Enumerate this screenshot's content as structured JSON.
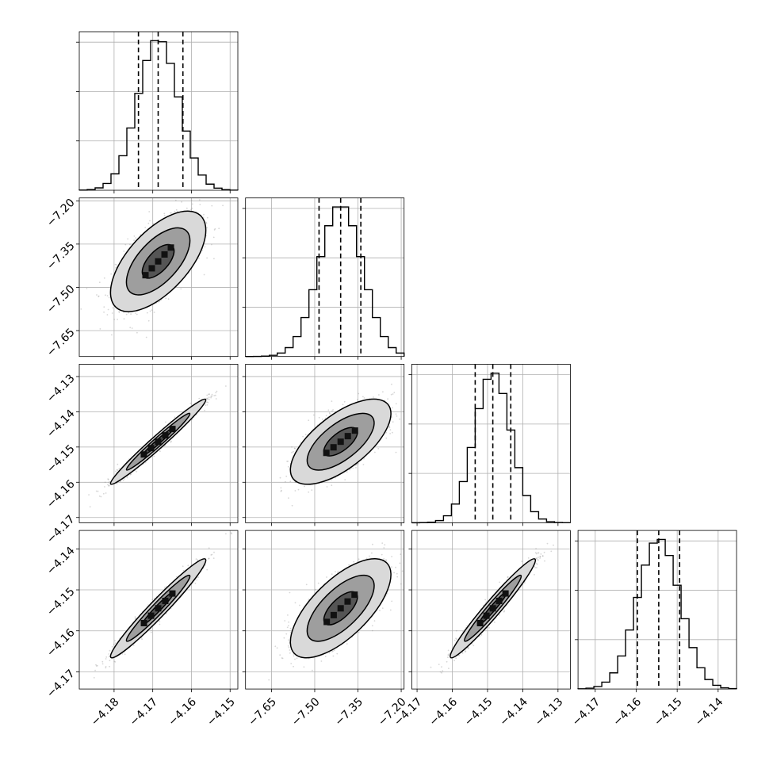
{
  "chart_data": {
    "type": "corner",
    "grid": true,
    "quantile_lines": "dashed",
    "colors": {
      "line": "#000000",
      "grid": "#b0b0b0",
      "scatter": "#8c8c8c",
      "background": "#ffffff"
    },
    "parameters": [
      {
        "mean": -4.1686,
        "std": 0.0053,
        "quantiles": [
          -4.1737,
          -4.1686,
          -4.1622
        ],
        "ticks": [
          -4.18,
          -4.17,
          -4.16,
          -4.15
        ],
        "tick_labels": [
          "−4.18",
          "−4.17",
          "−4.16",
          "−4.15"
        ],
        "range": [
          -4.189,
          -4.148
        ]
      },
      {
        "mean": -7.41,
        "std": 0.075,
        "quantiles": [
          -7.485,
          -7.41,
          -7.34
        ],
        "ticks": [
          -7.65,
          -7.5,
          -7.35,
          -7.2
        ],
        "tick_labels": [
          "−7.65",
          "−7.50",
          "−7.35",
          "−7.20"
        ],
        "range": [
          -7.74,
          -7.19
        ]
      },
      {
        "mean": -4.1485,
        "std": 0.0052,
        "quantiles": [
          -4.1535,
          -4.1485,
          -4.1434
        ],
        "ticks": [
          -4.17,
          -4.16,
          -4.15,
          -4.14,
          -4.13
        ],
        "tick_labels": [
          "−4.17",
          "−4.16",
          "−4.15",
          "−4.14",
          "−4.13"
        ],
        "range": [
          -4.1715,
          -4.1265
        ]
      },
      {
        "mean": -4.1545,
        "std": 0.0052,
        "quantiles": [
          -4.1597,
          -4.1545,
          -4.1494
        ],
        "ticks": [
          -4.17,
          -4.16,
          -4.15,
          -4.14
        ],
        "tick_labels": [
          "−4.17",
          "−4.16",
          "−4.15",
          "−4.14"
        ],
        "range": [
          -4.1742,
          -4.1355
        ]
      }
    ],
    "correlations": [
      [
        1.0,
        0.62,
        0.98,
        0.97
      ],
      [
        0.62,
        1.0,
        0.66,
        0.68
      ],
      [
        0.98,
        0.66,
        1.0,
        0.97
      ],
      [
        0.97,
        0.68,
        0.97,
        1.0
      ]
    ],
    "histogram_bins": 20,
    "contour_levels": [
      0.5,
      1.0,
      1.5
    ]
  }
}
